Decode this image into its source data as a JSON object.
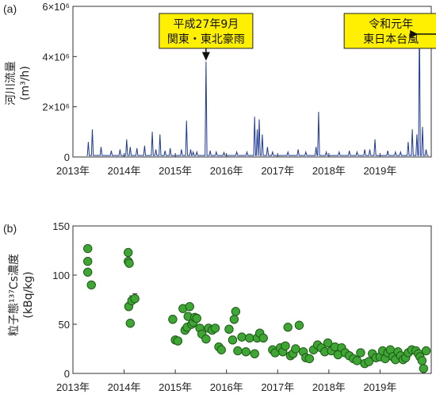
{
  "chart_data": [
    {
      "type": "area",
      "panel_label": "(a)",
      "ylabel_line1": "河川流量",
      "ylabel_line2": "(m³/h)",
      "xlim": [
        2013.0,
        2020.0
      ],
      "ylim": [
        0,
        6000000
      ],
      "y_ticks": [
        {
          "value": 0,
          "label": "0"
        },
        {
          "value": 2000000,
          "label": "2×10⁶"
        },
        {
          "value": 4000000,
          "label": "4×10⁶"
        },
        {
          "value": 6000000,
          "label": "6×10⁶"
        }
      ],
      "x_ticks": [
        {
          "value": 2013,
          "label": "2013年"
        },
        {
          "value": 2014,
          "label": "2014年"
        },
        {
          "value": 2015,
          "label": "2015年"
        },
        {
          "value": 2016,
          "label": "2016年"
        },
        {
          "value": 2017,
          "label": "2017年"
        },
        {
          "value": 2018,
          "label": "2018年"
        },
        {
          "value": 2019,
          "label": "2019年"
        }
      ],
      "baseline": 60000,
      "line_color": "#1f3a93",
      "peaks": [
        {
          "x": 2013.3,
          "y": 600000
        },
        {
          "x": 2013.38,
          "y": 1100000
        },
        {
          "x": 2013.55,
          "y": 400000
        },
        {
          "x": 2013.75,
          "y": 250000
        },
        {
          "x": 2013.92,
          "y": 300000
        },
        {
          "x": 2014.05,
          "y": 700000
        },
        {
          "x": 2014.12,
          "y": 400000
        },
        {
          "x": 2014.25,
          "y": 350000
        },
        {
          "x": 2014.4,
          "y": 450000
        },
        {
          "x": 2014.55,
          "y": 1000000
        },
        {
          "x": 2014.62,
          "y": 300000
        },
        {
          "x": 2014.7,
          "y": 900000
        },
        {
          "x": 2014.8,
          "y": 250000
        },
        {
          "x": 2014.9,
          "y": 350000
        },
        {
          "x": 2015.12,
          "y": 300000
        },
        {
          "x": 2015.22,
          "y": 1450000
        },
        {
          "x": 2015.3,
          "y": 300000
        },
        {
          "x": 2015.35,
          "y": 200000
        },
        {
          "x": 2015.42,
          "y": 200000
        },
        {
          "x": 2015.6,
          "y": 3800000
        },
        {
          "x": 2015.68,
          "y": 250000
        },
        {
          "x": 2015.8,
          "y": 200000
        },
        {
          "x": 2015.95,
          "y": 180000
        },
        {
          "x": 2016.2,
          "y": 200000
        },
        {
          "x": 2016.4,
          "y": 200000
        },
        {
          "x": 2016.55,
          "y": 1600000
        },
        {
          "x": 2016.6,
          "y": 1100000
        },
        {
          "x": 2016.64,
          "y": 1500000
        },
        {
          "x": 2016.7,
          "y": 900000
        },
        {
          "x": 2016.8,
          "y": 400000
        },
        {
          "x": 2016.9,
          "y": 200000
        },
        {
          "x": 2017.2,
          "y": 200000
        },
        {
          "x": 2017.4,
          "y": 300000
        },
        {
          "x": 2017.55,
          "y": 200000
        },
        {
          "x": 2017.75,
          "y": 400000
        },
        {
          "x": 2017.8,
          "y": 1800000
        },
        {
          "x": 2017.95,
          "y": 200000
        },
        {
          "x": 2018.2,
          "y": 200000
        },
        {
          "x": 2018.4,
          "y": 250000
        },
        {
          "x": 2018.55,
          "y": 200000
        },
        {
          "x": 2018.7,
          "y": 300000
        },
        {
          "x": 2018.8,
          "y": 300000
        },
        {
          "x": 2018.9,
          "y": 700000
        },
        {
          "x": 2019.15,
          "y": 250000
        },
        {
          "x": 2019.3,
          "y": 200000
        },
        {
          "x": 2019.4,
          "y": 200000
        },
        {
          "x": 2019.55,
          "y": 600000
        },
        {
          "x": 2019.63,
          "y": 1100000
        },
        {
          "x": 2019.72,
          "y": 900000
        },
        {
          "x": 2019.77,
          "y": 5500000
        },
        {
          "x": 2019.83,
          "y": 1200000
        },
        {
          "x": 2019.9,
          "y": 300000
        }
      ],
      "annotations": [
        {
          "line1": "平成27年9月",
          "line2": "関東・東北豪雨",
          "x": 2015.6,
          "y": 3800000
        },
        {
          "line1": "令和元年",
          "line2": "東日本台風",
          "x": 2019.77,
          "y": 5500000
        }
      ],
      "callout_bg": "#ffef00"
    },
    {
      "type": "scatter",
      "panel_label": "(b)",
      "ylabel_line1": "粒子態¹³⁷Cs濃度",
      "ylabel_line2": "(kBq/kg)",
      "xlim": [
        2013.0,
        2020.0
      ],
      "ylim": [
        0,
        150
      ],
      "y_ticks": [
        {
          "value": 0,
          "label": "0"
        },
        {
          "value": 50,
          "label": "50"
        },
        {
          "value": 100,
          "label": "100"
        },
        {
          "value": 150,
          "label": "150"
        }
      ],
      "x_ticks": [
        {
          "value": 2013,
          "label": "2013年"
        },
        {
          "value": 2014,
          "label": "2014年"
        },
        {
          "value": 2015,
          "label": "2015年"
        },
        {
          "value": 2016,
          "label": "2016年"
        },
        {
          "value": 2017,
          "label": "2017年"
        },
        {
          "value": 2018,
          "label": "2018年"
        },
        {
          "value": 2019,
          "label": "2019年"
        }
      ],
      "marker_color": "#3fa535",
      "marker_edge": "#1e5a17",
      "points": [
        {
          "x": 2013.29,
          "y": 127
        },
        {
          "x": 2013.29,
          "y": 114
        },
        {
          "x": 2013.29,
          "y": 103
        },
        {
          "x": 2013.36,
          "y": 90
        },
        {
          "x": 2014.08,
          "y": 123
        },
        {
          "x": 2014.08,
          "y": 114
        },
        {
          "x": 2014.1,
          "y": 112
        },
        {
          "x": 2014.09,
          "y": 68,
          "err": 4
        },
        {
          "x": 2014.15,
          "y": 74,
          "err": 5
        },
        {
          "x": 2014.21,
          "y": 76,
          "err": 5
        },
        {
          "x": 2014.12,
          "y": 51,
          "err": 3
        },
        {
          "x": 2014.95,
          "y": 55,
          "err": 4
        },
        {
          "x": 2015.0,
          "y": 34,
          "err": 2
        },
        {
          "x": 2015.05,
          "y": 33
        },
        {
          "x": 2015.15,
          "y": 66,
          "err": 3
        },
        {
          "x": 2015.19,
          "y": 44
        },
        {
          "x": 2015.23,
          "y": 47
        },
        {
          "x": 2015.25,
          "y": 58
        },
        {
          "x": 2015.28,
          "y": 68
        },
        {
          "x": 2015.32,
          "y": 50
        },
        {
          "x": 2015.35,
          "y": 52
        },
        {
          "x": 2015.38,
          "y": 57
        },
        {
          "x": 2015.42,
          "y": 56,
          "err": 4
        },
        {
          "x": 2015.48,
          "y": 46
        },
        {
          "x": 2015.52,
          "y": 40,
          "err": 3
        },
        {
          "x": 2015.6,
          "y": 35
        },
        {
          "x": 2015.65,
          "y": 46
        },
        {
          "x": 2015.72,
          "y": 44
        },
        {
          "x": 2015.78,
          "y": 46,
          "err": 3
        },
        {
          "x": 2015.85,
          "y": 27
        },
        {
          "x": 2015.9,
          "y": 24
        },
        {
          "x": 2016.05,
          "y": 45
        },
        {
          "x": 2016.12,
          "y": 34
        },
        {
          "x": 2016.15,
          "y": 55
        },
        {
          "x": 2016.18,
          "y": 63,
          "err": 3
        },
        {
          "x": 2016.22,
          "y": 23
        },
        {
          "x": 2016.3,
          "y": 37
        },
        {
          "x": 2016.38,
          "y": 22
        },
        {
          "x": 2016.45,
          "y": 36
        },
        {
          "x": 2016.55,
          "y": 20
        },
        {
          "x": 2016.6,
          "y": 36
        },
        {
          "x": 2016.65,
          "y": 41
        },
        {
          "x": 2016.72,
          "y": 36
        },
        {
          "x": 2016.9,
          "y": 24
        },
        {
          "x": 2016.95,
          "y": 21
        },
        {
          "x": 2017.05,
          "y": 26
        },
        {
          "x": 2017.1,
          "y": 22
        },
        {
          "x": 2017.15,
          "y": 28
        },
        {
          "x": 2017.2,
          "y": 47
        },
        {
          "x": 2017.25,
          "y": 18
        },
        {
          "x": 2017.3,
          "y": 20
        },
        {
          "x": 2017.35,
          "y": 25
        },
        {
          "x": 2017.42,
          "y": 49
        },
        {
          "x": 2017.5,
          "y": 22
        },
        {
          "x": 2017.55,
          "y": 16
        },
        {
          "x": 2017.62,
          "y": 15
        },
        {
          "x": 2017.7,
          "y": 24
        },
        {
          "x": 2017.78,
          "y": 29
        },
        {
          "x": 2017.85,
          "y": 26
        },
        {
          "x": 2017.92,
          "y": 22
        },
        {
          "x": 2017.98,
          "y": 31
        },
        {
          "x": 2018.05,
          "y": 23
        },
        {
          "x": 2018.12,
          "y": 27
        },
        {
          "x": 2018.18,
          "y": 19
        },
        {
          "x": 2018.25,
          "y": 26
        },
        {
          "x": 2018.32,
          "y": 21
        },
        {
          "x": 2018.4,
          "y": 18
        },
        {
          "x": 2018.48,
          "y": 15
        },
        {
          "x": 2018.55,
          "y": 13
        },
        {
          "x": 2018.62,
          "y": 21
        },
        {
          "x": 2018.7,
          "y": 10
        },
        {
          "x": 2018.78,
          "y": 12
        },
        {
          "x": 2018.85,
          "y": 20
        },
        {
          "x": 2018.92,
          "y": 16
        },
        {
          "x": 2019.0,
          "y": 17
        },
        {
          "x": 2019.05,
          "y": 23
        },
        {
          "x": 2019.1,
          "y": 15
        },
        {
          "x": 2019.15,
          "y": 21
        },
        {
          "x": 2019.2,
          "y": 24
        },
        {
          "x": 2019.25,
          "y": 17
        },
        {
          "x": 2019.3,
          "y": 14
        },
        {
          "x": 2019.35,
          "y": 22
        },
        {
          "x": 2019.4,
          "y": 18
        },
        {
          "x": 2019.45,
          "y": 14
        },
        {
          "x": 2019.5,
          "y": 16
        },
        {
          "x": 2019.55,
          "y": 21
        },
        {
          "x": 2019.62,
          "y": 24
        },
        {
          "x": 2019.7,
          "y": 23
        },
        {
          "x": 2019.75,
          "y": 20
        },
        {
          "x": 2019.78,
          "y": 17
        },
        {
          "x": 2019.82,
          "y": 13
        },
        {
          "x": 2019.85,
          "y": 5
        },
        {
          "x": 2019.9,
          "y": 23
        }
      ]
    }
  ]
}
